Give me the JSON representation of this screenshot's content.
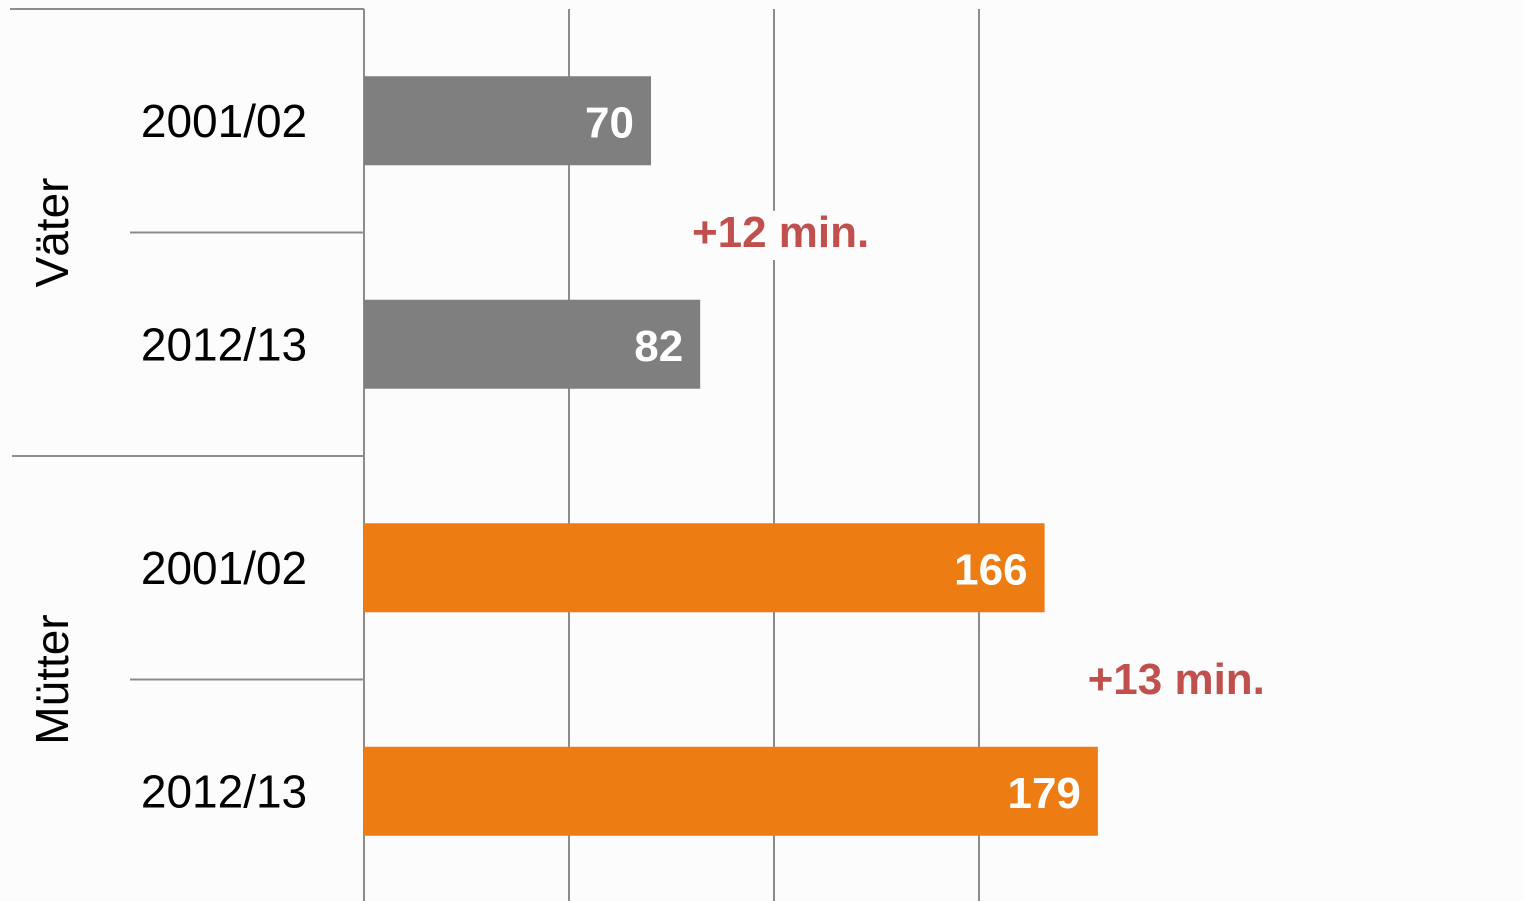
{
  "chart_data": {
    "type": "bar",
    "orientation": "horizontal",
    "title": "",
    "xlabel": "",
    "ylabel": "",
    "xlim": [
      0,
      200
    ],
    "grid": true,
    "legend": "none",
    "groups": [
      {
        "name": "Väter",
        "color": "#7f7f7f",
        "bars": [
          {
            "category": "2001/02",
            "value": 70,
            "label": "70"
          },
          {
            "category": "2012/13",
            "value": 82,
            "label": "82"
          }
        ],
        "annotation": "+12 min."
      },
      {
        "name": "Mütter",
        "color": "#ed7d12",
        "bars": [
          {
            "category": "2001/02",
            "value": 166,
            "label": "166"
          },
          {
            "category": "2012/13",
            "value": 179,
            "label": "179"
          }
        ],
        "annotation": "+13 min."
      }
    ],
    "annotation_color": "#c0504d",
    "gridline_color": "#8c8c8c"
  }
}
